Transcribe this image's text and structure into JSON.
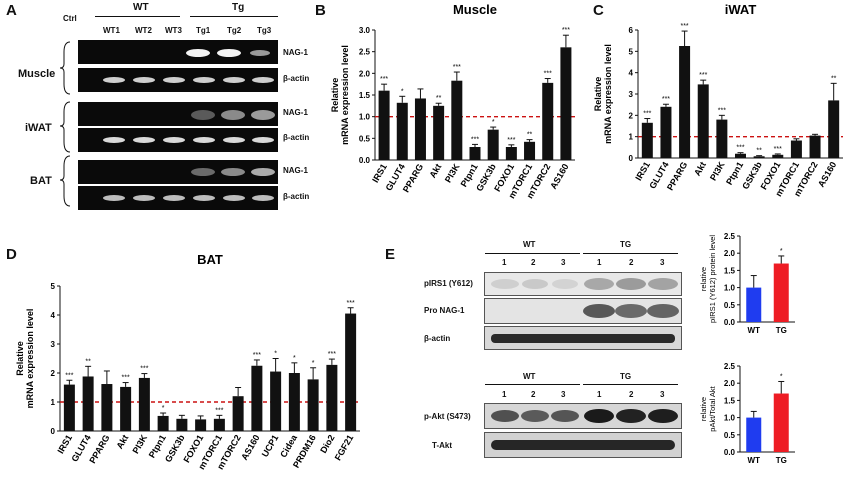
{
  "panels": {
    "A": "A",
    "B": "B",
    "C": "C",
    "D": "D",
    "E": "E"
  },
  "panelA": {
    "ctrl": "Ctrl",
    "wt": "WT",
    "tg": "Tg",
    "lanes": [
      "WT1",
      "WT2",
      "WT3",
      "Tg1",
      "Tg2",
      "Tg3"
    ],
    "tissues": [
      "Muscle",
      "iWAT",
      "BAT"
    ],
    "bands": [
      "NAG-1",
      "β-actin"
    ]
  },
  "panelE": {
    "wt": "WT",
    "tg": "TG",
    "lanes": [
      "1",
      "2",
      "3",
      "1",
      "2",
      "3"
    ],
    "blots1": [
      "pIRS1 (Y612)",
      "Pro NAG-1",
      "β-actin"
    ],
    "blots2": [
      "p-Akt (S473)",
      "T-Akt"
    ]
  },
  "chart_data": [
    {
      "type": "bar",
      "id": "B",
      "title": "Muscle",
      "ylabel": "Relative mRNA expression level",
      "ylim": [
        0,
        3.0
      ],
      "yticks": [
        "0.0",
        "0.5",
        "1.0",
        "1.5",
        "2.0",
        "2.5",
        "3.0"
      ],
      "reference_line": 1.0,
      "categories": [
        "IRS1",
        "GLUT4",
        "PPARG",
        "Akt",
        "PI3K",
        "Ptpn1",
        "GSK3b",
        "FOXO1",
        "mTORC1",
        "mTORC2",
        "AS160"
      ],
      "values": [
        1.6,
        1.32,
        1.42,
        1.25,
        1.83,
        0.3,
        0.7,
        0.3,
        0.42,
        1.78,
        2.6
      ],
      "errors": [
        0.15,
        0.15,
        0.22,
        0.06,
        0.2,
        0.06,
        0.06,
        0.05,
        0.05,
        0.1,
        0.28
      ],
      "sig": [
        "***",
        "*",
        "",
        "**",
        "***",
        "***",
        "*",
        "***",
        "**",
        "***",
        "***"
      ]
    },
    {
      "type": "bar",
      "id": "C",
      "title": "iWAT",
      "ylabel": "Relative mRNA expression level",
      "ylim": [
        0,
        6
      ],
      "yticks": [
        "0",
        "1",
        "2",
        "3",
        "4",
        "5",
        "6"
      ],
      "reference_line": 1.0,
      "categories": [
        "IRS1",
        "GLUT4",
        "PPARG",
        "Akt",
        "PI3K",
        "Ptpn1",
        "GSK3b",
        "FOXO1",
        "mTORC1",
        "mTORC2",
        "AS160"
      ],
      "values": [
        1.65,
        2.4,
        5.25,
        3.45,
        1.8,
        0.2,
        0.08,
        0.15,
        0.82,
        1.05,
        2.7
      ],
      "errors": [
        0.2,
        0.12,
        0.7,
        0.2,
        0.2,
        0.05,
        0.03,
        0.04,
        0.08,
        0.06,
        0.8
      ],
      "sig": [
        "***",
        "***",
        "***",
        "***",
        "***",
        "***",
        "**",
        "***",
        "",
        "",
        "**"
      ]
    },
    {
      "type": "bar",
      "id": "D",
      "title": "BAT",
      "ylabel": "Relative mRNA expression level",
      "ylim": [
        0,
        5
      ],
      "yticks": [
        "0",
        "1",
        "2",
        "3",
        "4",
        "5"
      ],
      "reference_line": 1.0,
      "categories": [
        "IRS1",
        "GLUT4",
        "PPARG",
        "Akt",
        "PI3K",
        "Ptpn1",
        "GSK3b",
        "FOXO1",
        "mTORC1",
        "mTORC2",
        "AS160",
        "UCP1",
        "Cidea",
        "PRDM16",
        "Dio2",
        "FGF21"
      ],
      "values": [
        1.6,
        1.88,
        1.62,
        1.52,
        1.83,
        0.52,
        0.42,
        0.4,
        0.42,
        1.2,
        2.25,
        2.05,
        2.0,
        1.78,
        2.28,
        4.05
      ],
      "errors": [
        0.15,
        0.35,
        0.45,
        0.15,
        0.15,
        0.1,
        0.12,
        0.12,
        0.12,
        0.3,
        0.2,
        0.45,
        0.35,
        0.4,
        0.2,
        0.2
      ],
      "sig": [
        "***",
        "**",
        "",
        "***",
        "***",
        "*",
        "",
        "",
        "***",
        "",
        "***",
        "*",
        "*",
        "*",
        "***",
        "***"
      ]
    },
    {
      "type": "bar",
      "id": "E1",
      "ylabel": "relative pIRS1 (Y612) protein level",
      "ylim": [
        0,
        2.5
      ],
      "yticks": [
        "0.0",
        "0.5",
        "1.0",
        "1.5",
        "2.0",
        "2.5"
      ],
      "categories": [
        "WT",
        "TG"
      ],
      "values": [
        1.0,
        1.7
      ],
      "errors": [
        0.35,
        0.22
      ],
      "sig": [
        "",
        "*"
      ],
      "colors": [
        "#1f3cf0",
        "#ee1c24"
      ]
    },
    {
      "type": "bar",
      "id": "E2",
      "ylabel": "relative pAkt/Total Akt",
      "ylim": [
        0,
        2.5
      ],
      "yticks": [
        "0.0",
        "0.5",
        "1.0",
        "1.5",
        "2.0",
        "2.5"
      ],
      "categories": [
        "WT",
        "TG"
      ],
      "values": [
        1.0,
        1.7
      ],
      "errors": [
        0.18,
        0.35
      ],
      "sig": [
        "",
        "*"
      ],
      "colors": [
        "#1f3cf0",
        "#ee1c24"
      ]
    }
  ]
}
